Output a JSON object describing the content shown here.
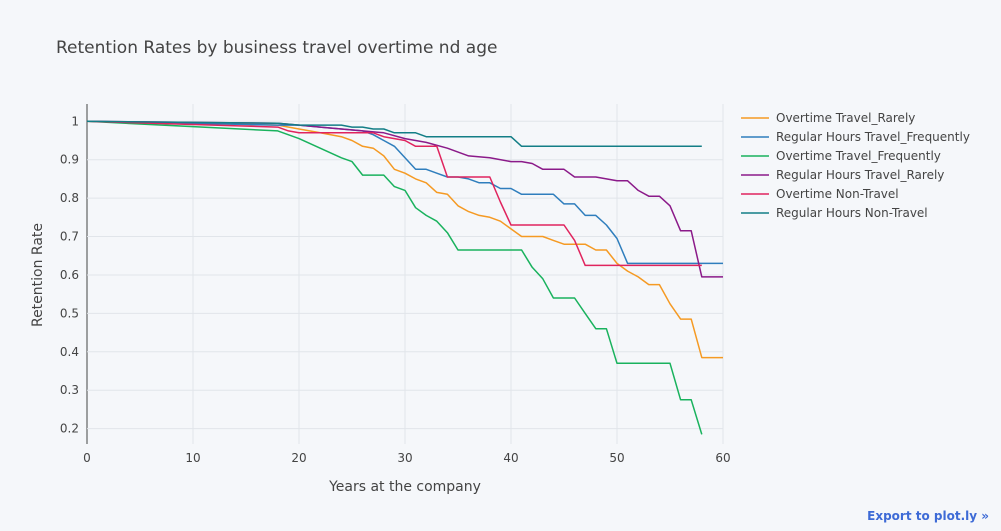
{
  "chart_data": {
    "type": "line",
    "title": "Retention Rates by business travel overtime nd age",
    "xlabel": "Years at the company",
    "ylabel": "Retention Rate",
    "xlim": [
      0,
      60
    ],
    "ylim": [
      0.16,
      1.045
    ],
    "xticks": [
      0,
      10,
      20,
      30,
      40,
      50,
      60
    ],
    "xtick_labels": [
      "0",
      "10",
      "20",
      "30",
      "40",
      "50",
      "60"
    ],
    "yticks": [
      0.2,
      0.3,
      0.4,
      0.5,
      0.6,
      0.7,
      0.8,
      0.9,
      1
    ],
    "ytick_labels": [
      "0.2",
      "0.3",
      "0.4",
      "0.5",
      "0.6",
      "0.7",
      "0.8",
      "0.9",
      "1"
    ],
    "grid": true,
    "legend_position": "right",
    "series": [
      {
        "name": "Overtime Travel_Rarely",
        "color": "#f59a23",
        "x": [
          0,
          18,
          20,
          22,
          24,
          25,
          26,
          27,
          28,
          29,
          30,
          31,
          32,
          33,
          34,
          35,
          36,
          37,
          38,
          39,
          40,
          41,
          42,
          43,
          44,
          45,
          46,
          47,
          48,
          49,
          50,
          51,
          52,
          53,
          54,
          55,
          56,
          57,
          58,
          59,
          60
        ],
        "y": [
          1,
          0.99,
          0.98,
          0.97,
          0.96,
          0.95,
          0.935,
          0.93,
          0.91,
          0.875,
          0.865,
          0.85,
          0.84,
          0.815,
          0.81,
          0.78,
          0.765,
          0.755,
          0.75,
          0.74,
          0.72,
          0.7,
          0.7,
          0.7,
          0.69,
          0.68,
          0.68,
          0.68,
          0.665,
          0.665,
          0.63,
          0.61,
          0.595,
          0.575,
          0.575,
          0.525,
          0.485,
          0.485,
          0.385,
          0.385,
          0.385
        ]
      },
      {
        "name": "Regular Hours Travel_Frequently",
        "color": "#2f7ebd",
        "x": [
          0,
          18,
          20,
          22,
          24,
          26,
          27,
          28,
          29,
          30,
          31,
          32,
          33,
          34,
          35,
          36,
          37,
          38,
          39,
          40,
          41,
          42,
          43,
          44,
          45,
          46,
          47,
          48,
          49,
          50,
          51,
          52,
          55,
          58,
          60
        ],
        "y": [
          1,
          0.99,
          0.99,
          0.985,
          0.98,
          0.975,
          0.965,
          0.95,
          0.935,
          0.905,
          0.875,
          0.875,
          0.865,
          0.855,
          0.855,
          0.85,
          0.84,
          0.84,
          0.825,
          0.825,
          0.81,
          0.81,
          0.81,
          0.81,
          0.785,
          0.785,
          0.755,
          0.755,
          0.73,
          0.695,
          0.63,
          0.63,
          0.63,
          0.63,
          0.63
        ]
      },
      {
        "name": "Overtime Travel_Frequently",
        "color": "#19b25d",
        "x": [
          0,
          18,
          20,
          22,
          24,
          25,
          26,
          27,
          28,
          29,
          30,
          31,
          32,
          33,
          34,
          35,
          36,
          37,
          38,
          39,
          40,
          41,
          42,
          43,
          44,
          45,
          46,
          47,
          48,
          49,
          50,
          51,
          52,
          53,
          54,
          55,
          56,
          57,
          58
        ],
        "y": [
          1,
          0.975,
          0.955,
          0.93,
          0.905,
          0.895,
          0.86,
          0.86,
          0.86,
          0.83,
          0.82,
          0.775,
          0.755,
          0.74,
          0.71,
          0.665,
          0.665,
          0.665,
          0.665,
          0.665,
          0.665,
          0.665,
          0.62,
          0.59,
          0.54,
          0.54,
          0.54,
          0.5,
          0.46,
          0.46,
          0.37,
          0.37,
          0.37,
          0.37,
          0.37,
          0.37,
          0.275,
          0.275,
          0.185
        ]
      },
      {
        "name": "Regular Hours Travel_Rarely",
        "color": "#8b1a89",
        "x": [
          0,
          18,
          20,
          22,
          24,
          26,
          28,
          30,
          32,
          34,
          36,
          38,
          40,
          41,
          42,
          43,
          44,
          45,
          46,
          47,
          48,
          49,
          50,
          51,
          52,
          53,
          54,
          55,
          56,
          57,
          58,
          59,
          60
        ],
        "y": [
          1,
          0.995,
          0.99,
          0.985,
          0.98,
          0.975,
          0.97,
          0.955,
          0.945,
          0.93,
          0.91,
          0.905,
          0.895,
          0.895,
          0.89,
          0.875,
          0.875,
          0.875,
          0.855,
          0.855,
          0.855,
          0.85,
          0.845,
          0.845,
          0.82,
          0.805,
          0.805,
          0.78,
          0.715,
          0.715,
          0.595,
          0.595,
          0.595
        ]
      },
      {
        "name": "Overtime Non-Travel",
        "color": "#e0245e",
        "x": [
          0,
          18,
          19,
          20,
          22,
          24,
          26,
          27,
          28,
          30,
          31,
          32,
          33,
          34,
          36,
          38,
          39,
          40,
          41,
          42,
          43,
          44,
          45,
          46,
          47,
          48,
          50,
          55,
          57,
          58
        ],
        "y": [
          1,
          0.985,
          0.975,
          0.97,
          0.97,
          0.97,
          0.97,
          0.97,
          0.96,
          0.95,
          0.935,
          0.935,
          0.935,
          0.855,
          0.855,
          0.855,
          0.79,
          0.73,
          0.73,
          0.73,
          0.73,
          0.73,
          0.73,
          0.69,
          0.625,
          0.625,
          0.625,
          0.625,
          0.625,
          0.625
        ]
      },
      {
        "name": "Regular Hours Non-Travel",
        "color": "#137e86",
        "x": [
          0,
          18,
          20,
          22,
          24,
          25,
          26,
          27,
          28,
          29,
          30,
          31,
          32,
          34,
          36,
          38,
          40,
          41,
          45,
          50,
          55,
          58
        ],
        "y": [
          1,
          0.995,
          0.99,
          0.99,
          0.99,
          0.985,
          0.985,
          0.98,
          0.98,
          0.97,
          0.97,
          0.97,
          0.96,
          0.96,
          0.96,
          0.96,
          0.96,
          0.935,
          0.935,
          0.935,
          0.935,
          0.935
        ]
      }
    ]
  },
  "export_label": "Export to plot.ly »"
}
